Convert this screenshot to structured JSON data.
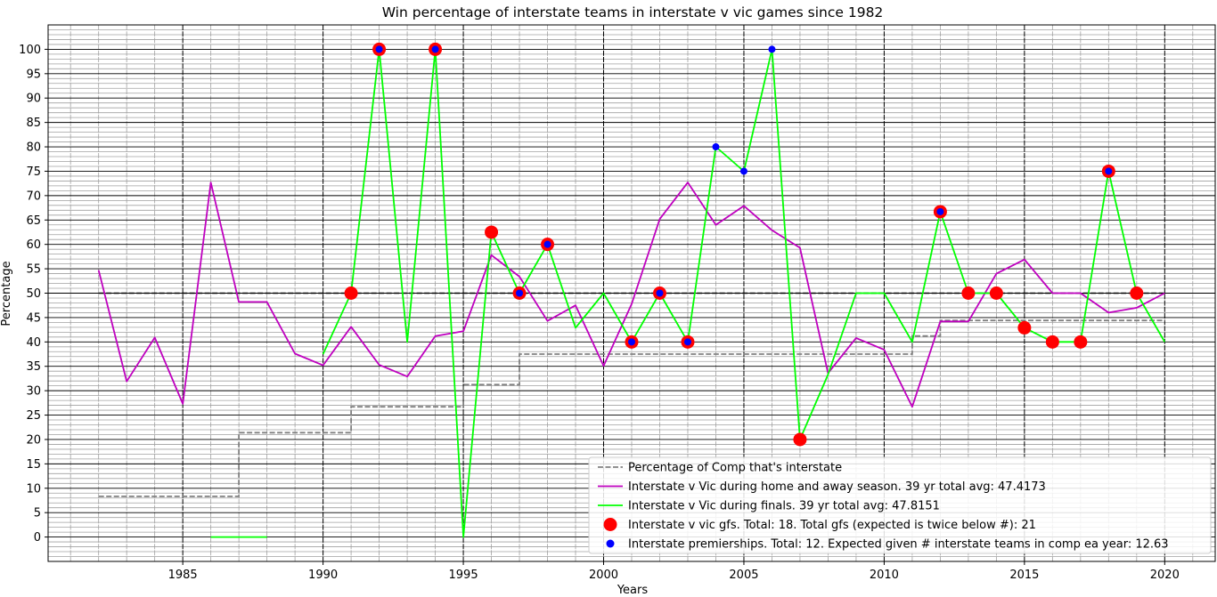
{
  "chart_data": {
    "type": "line",
    "title": "Win percentage of interstate teams in interstate v vic games since 1982",
    "xlabel": "Years",
    "ylabel": "Percentage",
    "xlim": [
      1980.2,
      2021.8
    ],
    "ylim": [
      -5,
      105
    ],
    "x_ticks": [
      1985,
      1990,
      1995,
      2000,
      2005,
      2010,
      2015,
      2020
    ],
    "y_ticks": [
      0,
      5,
      10,
      15,
      20,
      25,
      30,
      35,
      40,
      45,
      50,
      55,
      60,
      65,
      70,
      75,
      80,
      85,
      90,
      95,
      100
    ],
    "grid": true,
    "legend_position": "bottom-right",
    "reference_line": {
      "y": 50,
      "style": "dashed",
      "color": "#000000"
    },
    "series": [
      {
        "name": "Percentage of Comp that's interstate",
        "kind": "step-dashed",
        "color": "#808080",
        "x": [
          1982,
          1987,
          1987,
          1991,
          1991,
          1995,
          1995,
          1997,
          1997,
          2011,
          2011,
          2012,
          2012,
          2020
        ],
        "y": [
          8.33,
          8.33,
          21.4,
          21.4,
          26.7,
          26.7,
          31.25,
          31.25,
          37.5,
          37.5,
          41.2,
          41.2,
          44.4,
          44.4
        ]
      },
      {
        "name": "Interstate v Vic during home and away season. 39 yr total avg: 47.4173",
        "kind": "line",
        "color": "#bf00bf",
        "x": [
          1982,
          1983,
          1984,
          1985,
          1986,
          1987,
          1988,
          1989,
          1990,
          1991,
          1992,
          1993,
          1994,
          1995,
          1996,
          1997,
          1998,
          1999,
          2000,
          2001,
          2002,
          2003,
          2004,
          2005,
          2006,
          2007,
          2008,
          2009,
          2010,
          2011,
          2012,
          2013,
          2014,
          2015,
          2016,
          2017,
          2018,
          2019,
          2020
        ],
        "y": [
          54.7,
          31.9,
          40.9,
          27.3,
          72.7,
          48.2,
          48.2,
          37.6,
          35.2,
          43.1,
          35.3,
          32.9,
          41.2,
          42.2,
          57.8,
          53.4,
          44.3,
          47.5,
          35.1,
          47.8,
          65.2,
          72.7,
          64.0,
          67.9,
          62.9,
          59.3,
          33.6,
          40.8,
          38.4,
          26.7,
          44.2,
          44.2,
          54.0,
          56.9,
          50.0,
          50.0,
          46.0,
          47.0,
          50.0
        ]
      },
      {
        "name": "Interstate v Vic during finals. 39 yr total avg: 47.8151",
        "kind": "line",
        "color": "#00ff00",
        "segments": [
          {
            "x": [
              1986,
              1988
            ],
            "y": [
              0,
              0
            ]
          },
          {
            "x": [
              1990,
              1991,
              1992,
              1993,
              1994,
              1995,
              1996,
              1997,
              1998,
              1999,
              2000,
              2001,
              2002,
              2003,
              2004,
              2005,
              2006,
              2007,
              2008,
              2009,
              2010,
              2011,
              2012,
              2013,
              2014,
              2015,
              2016,
              2017,
              2018,
              2019,
              2020
            ],
            "y": [
              37.5,
              50,
              100,
              40,
              100,
              0,
              62.5,
              50,
              60,
              42.9,
              50,
              40,
              50,
              40,
              80,
              75,
              100,
              20,
              33.3,
              50,
              50,
              40,
              66.7,
              50,
              50,
              42.9,
              40,
              40,
              75,
              50,
              40
            ]
          }
        ]
      },
      {
        "name": "Interstate v vic gfs. Total: 18. Total gfs (expected is twice below #): 21",
        "kind": "scatter",
        "color": "#ff0000",
        "x": [
          1991,
          1992,
          1994,
          1996,
          1997,
          1998,
          2001,
          2002,
          2003,
          2007,
          2012,
          2013,
          2014,
          2015,
          2016,
          2017,
          2018,
          2019
        ],
        "y": [
          50,
          100,
          100,
          62.5,
          50,
          60,
          40,
          50,
          40,
          20,
          66.7,
          50,
          50,
          42.9,
          40,
          40,
          75,
          50
        ]
      },
      {
        "name": "Interstate premierships. Total: 12. Expected given # interstate teams in comp ea year: 12.63",
        "kind": "scatter",
        "color": "#0000ff",
        "x": [
          1992,
          1994,
          1997,
          1998,
          2001,
          2002,
          2003,
          2004,
          2005,
          2006,
          2012,
          2018
        ],
        "y": [
          100,
          100,
          50,
          60,
          40,
          50,
          40,
          80,
          75,
          100,
          66.7,
          75
        ]
      }
    ]
  }
}
